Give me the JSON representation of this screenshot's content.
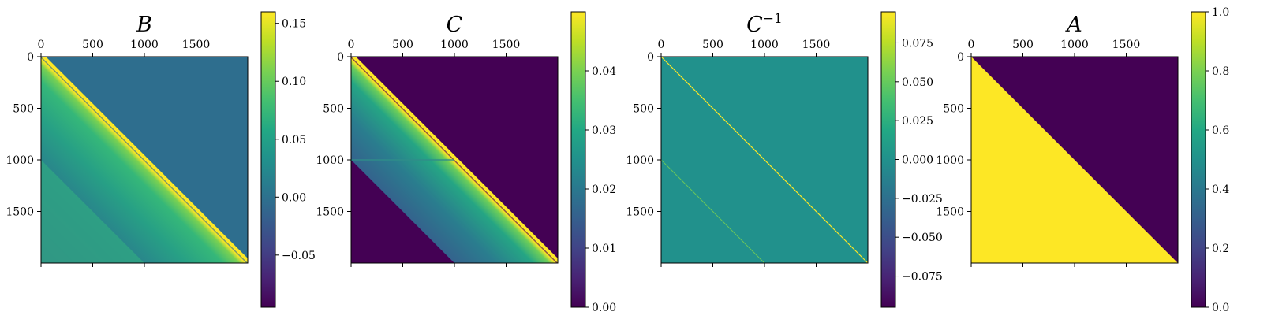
{
  "chart_data": [
    {
      "type": "heatmap",
      "title": "B",
      "title_sup": "",
      "matrix_size": 2000,
      "matrix_structure": "lower-triangular",
      "x_ticks": [
        "0",
        "500",
        "1000",
        "1500"
      ],
      "y_ticks": [
        "0",
        "500",
        "1000",
        "1500"
      ],
      "x_tick_values": [
        0,
        500,
        1000,
        1500
      ],
      "y_tick_values": [
        0,
        500,
        1000,
        1500
      ],
      "colormap": "viridis",
      "colorbar": {
        "vmin": -0.095,
        "vmax": 0.16,
        "ticks": [
          -0.05,
          0.0,
          0.05,
          0.1,
          0.15
        ],
        "tick_labels": [
          "−0.05",
          "0.00",
          "0.05",
          "0.10",
          "0.15"
        ]
      }
    },
    {
      "type": "heatmap",
      "title": "C",
      "title_sup": "",
      "matrix_size": 2000,
      "matrix_structure": "lower-triangular",
      "x_ticks": [
        "0",
        "500",
        "1000",
        "1500"
      ],
      "y_ticks": [
        "0",
        "500",
        "1000",
        "1500"
      ],
      "x_tick_values": [
        0,
        500,
        1000,
        1500
      ],
      "y_tick_values": [
        0,
        500,
        1000,
        1500
      ],
      "colormap": "viridis",
      "colorbar": {
        "vmin": 0.0,
        "vmax": 0.05,
        "ticks": [
          0.0,
          0.01,
          0.02,
          0.03,
          0.04
        ],
        "tick_labels": [
          "0.00",
          "0.01",
          "0.02",
          "0.03",
          "0.04"
        ]
      }
    },
    {
      "type": "heatmap",
      "title": "C",
      "title_sup": "−1",
      "matrix_size": 2000,
      "matrix_structure": "bidiagonal",
      "x_ticks": [
        "0",
        "500",
        "1000",
        "1500"
      ],
      "y_ticks": [
        "0",
        "500",
        "1000",
        "1500"
      ],
      "x_tick_values": [
        0,
        500,
        1000,
        1500
      ],
      "y_tick_values": [
        0,
        500,
        1000,
        1500
      ],
      "colormap": "viridis",
      "colorbar": {
        "vmin": -0.095,
        "vmax": 0.095,
        "ticks": [
          -0.075,
          -0.05,
          -0.025,
          0.0,
          0.025,
          0.05,
          0.075
        ],
        "tick_labels": [
          "−0.075",
          "−0.050",
          "−0.025",
          "0.000",
          "0.025",
          "0.050",
          "0.075"
        ]
      }
    },
    {
      "type": "heatmap",
      "title": "A",
      "title_sup": "",
      "matrix_size": 2000,
      "matrix_structure": "lower-triangular ones",
      "x_ticks": [
        "0",
        "500",
        "1000",
        "1500"
      ],
      "y_ticks": [
        "0",
        "500",
        "1000",
        "1500"
      ],
      "x_tick_values": [
        0,
        500,
        1000,
        1500
      ],
      "y_tick_values": [
        0,
        500,
        1000,
        1500
      ],
      "colormap": "viridis",
      "colorbar": {
        "vmin": 0.0,
        "vmax": 1.0,
        "ticks": [
          0.0,
          0.2,
          0.4,
          0.6,
          0.8,
          1.0
        ],
        "tick_labels": [
          "0.0",
          "0.2",
          "0.4",
          "0.6",
          "0.8",
          "1.0"
        ]
      }
    }
  ]
}
